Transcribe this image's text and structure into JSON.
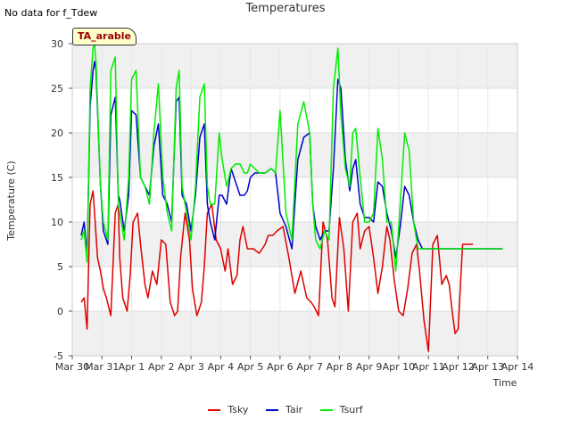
{
  "header": {
    "no_data_note": "No data for f_Tdew",
    "badge": "TA_arable"
  },
  "chart_data": {
    "type": "line",
    "title": "Temperatures",
    "xlabel": "Time",
    "ylabel": "Temperature (C)",
    "ylim": [
      -5,
      30
    ],
    "xlim": [
      0,
      15
    ],
    "yticks": [
      -5,
      0,
      5,
      10,
      15,
      20,
      25,
      30
    ],
    "xticks": [
      0,
      1,
      2,
      3,
      4,
      5,
      6,
      7,
      8,
      9,
      10,
      11,
      12,
      13,
      14,
      15
    ],
    "xtick_labels": [
      "Mar 30",
      "Mar 31",
      "Apr 1",
      "Apr 2",
      "Apr 3",
      "Apr 4",
      "Apr 5",
      "Apr 6",
      "Apr 7",
      "Apr 8",
      "Apr 9",
      "Apr 10",
      "Apr 11",
      "Apr 12",
      "Apr 13",
      "Apr 14"
    ],
    "grid": true,
    "legend_position": "bottom-center",
    "series": [
      {
        "name": "Tsky",
        "color": "#dd0000",
        "x": [
          0.3,
          0.4,
          0.5,
          0.55,
          0.6,
          0.7,
          0.75,
          0.85,
          0.95,
          1.05,
          1.15,
          1.3,
          1.45,
          1.55,
          1.6,
          1.7,
          1.85,
          1.95,
          2.05,
          2.2,
          2.3,
          2.45,
          2.55,
          2.7,
          2.85,
          3.0,
          3.15,
          3.3,
          3.45,
          3.55,
          3.65,
          3.8,
          3.95,
          4.05,
          4.2,
          4.35,
          4.45,
          4.55,
          4.7,
          4.85,
          5.0,
          5.15,
          5.25,
          5.4,
          5.55,
          5.65,
          5.75,
          5.9,
          6.1,
          6.3,
          6.5,
          6.6,
          6.75,
          6.9,
          7.1,
          7.3,
          7.5,
          7.7,
          7.9,
          8.05,
          8.15,
          8.3,
          8.45,
          8.6,
          8.75,
          8.85,
          9.0,
          9.15,
          9.3,
          9.45,
          9.6,
          9.7,
          9.85,
          10.0,
          10.15,
          10.3,
          10.45,
          10.6,
          10.7,
          10.85,
          11.0,
          11.15,
          11.3,
          11.45,
          11.6,
          11.7,
          11.85,
          12.0,
          12.15,
          12.3,
          12.45,
          12.6,
          12.7,
          12.8,
          12.9,
          13.0,
          13.15,
          13.3,
          13.4,
          13.5
        ],
        "y": [
          1,
          1.5,
          -2,
          5,
          12,
          13.5,
          11,
          6,
          4.5,
          2.5,
          1.5,
          -0.5,
          11,
          12,
          6,
          1.5,
          0,
          4,
          10,
          11,
          7.5,
          3,
          1.5,
          4.5,
          3,
          8,
          7.5,
          1,
          -0.5,
          0,
          6,
          11,
          8,
          2.5,
          -0.5,
          1,
          5,
          11,
          12,
          8,
          7,
          4.5,
          7,
          3,
          4,
          8,
          9.5,
          7,
          7,
          6.5,
          7.5,
          8.5,
          8.5,
          9,
          9.5,
          6,
          2,
          4.5,
          1.5,
          1,
          0.5,
          -0.5,
          10,
          8,
          1.5,
          0.5,
          10.5,
          7,
          0,
          10,
          11,
          7,
          9,
          9.5,
          6,
          2,
          5,
          9.5,
          8,
          3.5,
          0,
          -0.5,
          2.5,
          6.5,
          7.5,
          4.5,
          -1,
          -4.5,
          7.5,
          8.5,
          3,
          4,
          3,
          0,
          -2.5,
          -2,
          7.5,
          7.5,
          7.5,
          7.5
        ]
      },
      {
        "name": "Tair",
        "color": "#0000cc",
        "x": [
          0.3,
          0.4,
          0.5,
          0.6,
          0.7,
          0.75,
          0.8,
          0.95,
          1.05,
          1.2,
          1.3,
          1.45,
          1.55,
          1.6,
          1.75,
          1.9,
          2.0,
          2.15,
          2.3,
          2.45,
          2.6,
          2.75,
          2.9,
          3.05,
          3.2,
          3.35,
          3.5,
          3.6,
          3.7,
          3.85,
          4.0,
          4.15,
          4.3,
          4.45,
          4.55,
          4.65,
          4.8,
          4.95,
          5.05,
          5.2,
          5.35,
          5.5,
          5.65,
          5.8,
          5.9,
          6.0,
          6.15,
          6.3,
          6.5,
          6.7,
          6.85,
          7.0,
          7.2,
          7.4,
          7.6,
          7.8,
          8.0,
          8.1,
          8.2,
          8.35,
          8.5,
          8.65,
          8.8,
          8.95,
          9.05,
          9.2,
          9.35,
          9.45,
          9.55,
          9.7,
          9.85,
          10.0,
          10.15,
          10.3,
          10.45,
          10.6,
          10.75,
          10.9,
          11.05,
          11.2,
          11.35,
          11.5,
          11.65,
          11.8,
          11.95,
          12.1,
          12.25,
          12.4,
          12.55,
          12.7,
          12.85,
          13.0,
          13.15,
          13.3,
          13.45,
          13.6,
          13.75,
          13.9,
          14.05,
          14.2,
          14.35,
          14.5
        ],
        "y": [
          8.5,
          10,
          6,
          23,
          27,
          28,
          27,
          14,
          9,
          7.5,
          22,
          24,
          13,
          12.5,
          9,
          13,
          22.5,
          22,
          15,
          14,
          13,
          18.5,
          21,
          13,
          12,
          10,
          23.5,
          24,
          13,
          12,
          9,
          13,
          19.5,
          21,
          12,
          10,
          8,
          13,
          13,
          12,
          16,
          14.5,
          13,
          13,
          13.5,
          15,
          15.5,
          15.5,
          15.5,
          16,
          15.5,
          11,
          9.5,
          7,
          17,
          19.5,
          20,
          12,
          9.5,
          8,
          9,
          9,
          16,
          26,
          25,
          17,
          13.5,
          16,
          17,
          12,
          10.5,
          10.5,
          10,
          14.5,
          14,
          11,
          9,
          6,
          9.5,
          14,
          13,
          10,
          8,
          7,
          7,
          7,
          7,
          7,
          7,
          7,
          7,
          7,
          7,
          7,
          7,
          7,
          7,
          7,
          7,
          7,
          7,
          7
        ]
      },
      {
        "name": "Tsurf",
        "color": "#00ee00",
        "x": [
          0.3,
          0.4,
          0.5,
          0.6,
          0.7,
          0.75,
          0.8,
          0.95,
          1.05,
          1.2,
          1.3,
          1.45,
          1.55,
          1.6,
          1.75,
          1.9,
          2.0,
          2.15,
          2.3,
          2.45,
          2.6,
          2.75,
          2.9,
          3.05,
          3.2,
          3.35,
          3.5,
          3.6,
          3.7,
          3.85,
          4.0,
          4.15,
          4.3,
          4.45,
          4.55,
          4.65,
          4.8,
          4.95,
          5.05,
          5.2,
          5.35,
          5.5,
          5.65,
          5.8,
          5.9,
          6.0,
          6.15,
          6.3,
          6.5,
          6.7,
          6.85,
          7.0,
          7.2,
          7.4,
          7.6,
          7.8,
          8.0,
          8.1,
          8.2,
          8.35,
          8.5,
          8.65,
          8.8,
          8.95,
          9.05,
          9.2,
          9.35,
          9.45,
          9.55,
          9.7,
          9.85,
          10.0,
          10.15,
          10.3,
          10.45,
          10.6,
          10.75,
          10.9,
          11.05,
          11.2,
          11.35,
          11.5,
          11.65,
          11.8,
          11.95,
          12.1,
          12.25,
          12.4,
          12.55,
          12.7,
          12.85,
          13.0,
          13.15,
          13.3,
          13.45,
          13.6,
          13.75,
          13.9,
          14.05,
          14.2,
          14.35,
          14.5
        ],
        "y": [
          8,
          9,
          5.5,
          25,
          29.5,
          30,
          28,
          14,
          10,
          8,
          27,
          28.5,
          12,
          11,
          8,
          15,
          26,
          27,
          15,
          14,
          12,
          20,
          25.5,
          15,
          11,
          9,
          25,
          27,
          14,
          11,
          8,
          14,
          24,
          25.5,
          14,
          12,
          12,
          20,
          17,
          14,
          16,
          16.5,
          16.5,
          15.5,
          15.5,
          16.5,
          16,
          15.5,
          15.5,
          16,
          15.5,
          22.5,
          11,
          8,
          21,
          23.5,
          20,
          12,
          8,
          7,
          9,
          8,
          25,
          29.5,
          22,
          16,
          14,
          20,
          20.5,
          15,
          10,
          10,
          11,
          20.5,
          17,
          10,
          10,
          4.5,
          12,
          20,
          18,
          10,
          7,
          7,
          7,
          7,
          7,
          7,
          7,
          7,
          7,
          7,
          7,
          7,
          7,
          7,
          7,
          7,
          7,
          7,
          7,
          7
        ]
      }
    ]
  }
}
